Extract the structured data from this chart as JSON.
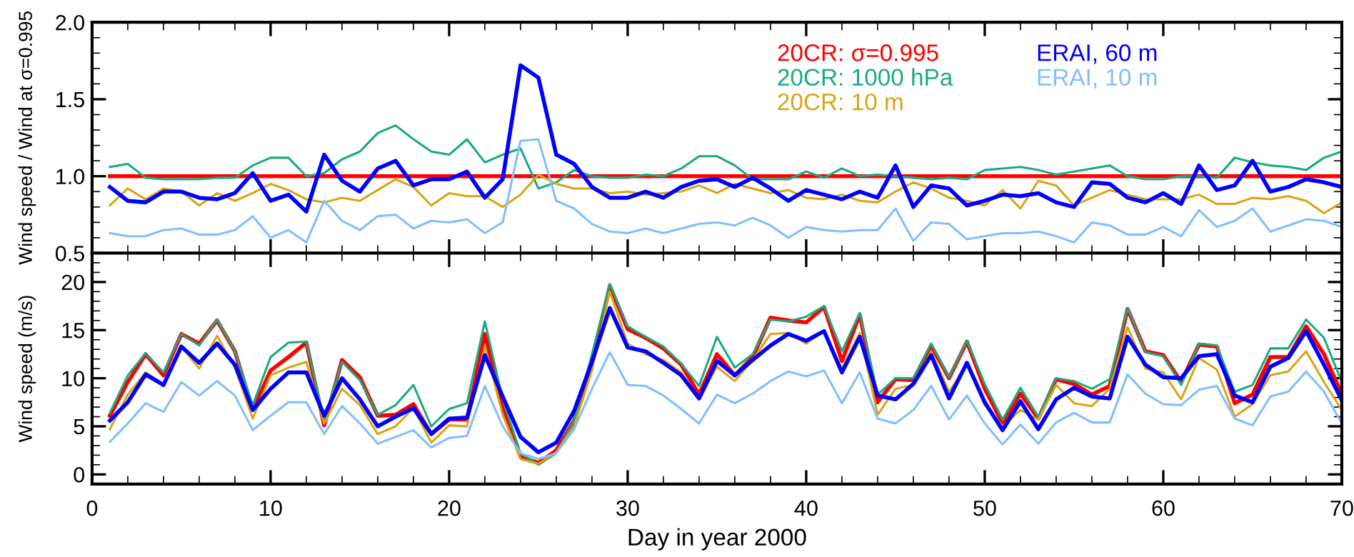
{
  "chart_data": [
    {
      "type": "line",
      "ylabel": "Wind speed / Wind at σ=0.995",
      "legend": "top right",
      "tick_labels": "y",
      "x": [
        1,
        2,
        3,
        4,
        5,
        6,
        7,
        8,
        9,
        10,
        11,
        12,
        13,
        14,
        15,
        16,
        17,
        18,
        19,
        20,
        21,
        22,
        23,
        24,
        25,
        26,
        27,
        28,
        29,
        30,
        31,
        32,
        33,
        34,
        35,
        36,
        37,
        38,
        39,
        40,
        41,
        42,
        43,
        44,
        45,
        46,
        47,
        48,
        49,
        50,
        51,
        52,
        53,
        54,
        55,
        56,
        57,
        58,
        59,
        60,
        61,
        62,
        63,
        64,
        65,
        66,
        67,
        68,
        69,
        70
      ],
      "xlim": [
        0,
        70
      ],
      "xticks": [
        0,
        10,
        20,
        30,
        40,
        50,
        60,
        70
      ],
      "ylim": [
        0.5,
        2.0
      ],
      "yticks": [
        0.5,
        {
          "value": 1,
          "label": "1.0"
        },
        1.5,
        {
          "value": 2,
          "label": "2.0"
        }
      ],
      "series": [
        {
          "name": "20CR: σ=0.995",
          "color": "#ff0000",
          "values": [
            1.0,
            1.0,
            1.0,
            1.0,
            1.0,
            1.0,
            1.0,
            1.0,
            1.0,
            1.0,
            1.0,
            1.0,
            1.0,
            1.0,
            1.0,
            1.0,
            1.0,
            1.0,
            1.0,
            1.0,
            1.0,
            1.0,
            1.0,
            1.0,
            1.0,
            1.0,
            1.0,
            1.0,
            1.0,
            1.0,
            1.0,
            1.0,
            1.0,
            1.0,
            1.0,
            1.0,
            1.0,
            1.0,
            1.0,
            1.0,
            1.0,
            1.0,
            1.0,
            1.0,
            1.0,
            1.0,
            1.0,
            1.0,
            1.0,
            1.0,
            1.0,
            1.0,
            1.0,
            1.0,
            1.0,
            1.0,
            1.0,
            1.0,
            1.0,
            1.0,
            1.0,
            1.0,
            1.0,
            1.0,
            1.0,
            1.0,
            1.0,
            1.0,
            1.0,
            1.0
          ]
        },
        {
          "name": "20CR: 1000 hPa",
          "color": "#1aaa80",
          "values": [
            1.06,
            1.08,
            0.99,
            0.98,
            0.98,
            0.98,
            0.99,
            0.99,
            1.07,
            1.12,
            1.12,
            1.0,
            1.02,
            1.11,
            1.16,
            1.28,
            1.33,
            1.24,
            1.16,
            1.14,
            1.24,
            1.09,
            1.14,
            1.18,
            0.92,
            0.96,
            1.04,
            1.0,
            0.99,
            0.99,
            1.01,
            1.0,
            1.05,
            1.13,
            1.13,
            1.07,
            0.98,
            0.98,
            0.98,
            1.03,
            0.99,
            1.05,
            1.0,
            1.01,
            1.0,
            0.99,
            0.98,
            0.99,
            0.98,
            1.04,
            1.05,
            1.06,
            1.04,
            1.01,
            1.03,
            1.05,
            1.07,
            1.0,
            0.98,
            0.98,
            1.0,
            1.0,
            0.99,
            1.12,
            1.09,
            1.07,
            1.06,
            1.04,
            1.12,
            1.16
          ]
        },
        {
          "name": "20CR: 10 m",
          "color": "#d9a514",
          "values": [
            0.81,
            0.92,
            0.85,
            0.92,
            0.9,
            0.81,
            0.89,
            0.84,
            0.89,
            0.95,
            0.91,
            0.85,
            0.83,
            0.86,
            0.84,
            0.91,
            0.98,
            0.93,
            0.81,
            0.89,
            0.87,
            0.87,
            0.8,
            0.88,
            1.01,
            0.95,
            0.92,
            0.92,
            0.89,
            0.9,
            0.88,
            0.89,
            0.9,
            0.94,
            0.89,
            0.95,
            0.92,
            0.89,
            0.91,
            0.86,
            0.85,
            0.88,
            0.84,
            0.83,
            0.9,
            0.96,
            0.92,
            0.86,
            0.84,
            0.81,
            0.91,
            0.79,
            0.97,
            0.94,
            0.81,
            0.86,
            0.91,
            0.88,
            0.85,
            0.85,
            0.85,
            0.88,
            0.82,
            0.82,
            0.86,
            0.85,
            0.87,
            0.84,
            0.76,
            0.83
          ]
        },
        {
          "name": "ERAI, 60 m",
          "color": "#0000ff",
          "values": [
            0.93,
            0.84,
            0.83,
            0.9,
            0.9,
            0.86,
            0.85,
            0.89,
            1.02,
            0.84,
            0.88,
            0.77,
            1.14,
            0.97,
            0.9,
            1.05,
            1.1,
            0.94,
            0.98,
            0.98,
            1.03,
            0.86,
            0.98,
            1.72,
            1.64,
            1.14,
            1.08,
            0.93,
            0.86,
            0.86,
            0.9,
            0.86,
            0.93,
            0.97,
            0.98,
            0.93,
            0.99,
            0.92,
            0.84,
            0.91,
            0.88,
            0.85,
            0.9,
            0.86,
            1.07,
            0.8,
            0.94,
            0.92,
            0.81,
            0.84,
            0.88,
            0.87,
            0.89,
            0.83,
            0.8,
            0.96,
            0.95,
            0.86,
            0.83,
            0.89,
            0.82,
            1.07,
            0.91,
            0.94,
            1.1,
            0.9,
            0.93,
            0.98,
            0.96,
            0.93
          ]
        },
        {
          "name": "ERAI, 10 m",
          "color": "#80bfff",
          "values": [
            0.63,
            0.61,
            0.61,
            0.65,
            0.66,
            0.62,
            0.62,
            0.65,
            0.74,
            0.6,
            0.65,
            0.57,
            0.84,
            0.71,
            0.65,
            0.74,
            0.75,
            0.66,
            0.71,
            0.7,
            0.72,
            0.63,
            0.7,
            1.23,
            1.24,
            0.84,
            0.79,
            0.69,
            0.64,
            0.63,
            0.66,
            0.63,
            0.66,
            0.69,
            0.7,
            0.68,
            0.73,
            0.68,
            0.6,
            0.67,
            0.65,
            0.64,
            0.65,
            0.65,
            0.79,
            0.58,
            0.7,
            0.69,
            0.59,
            0.61,
            0.63,
            0.63,
            0.64,
            0.61,
            0.57,
            0.7,
            0.68,
            0.62,
            0.62,
            0.67,
            0.61,
            0.78,
            0.67,
            0.71,
            0.79,
            0.64,
            0.68,
            0.72,
            0.71,
            0.67
          ]
        }
      ]
    },
    {
      "type": "line",
      "ylabel": "Wind speed (m/s)",
      "xlabel": "Day in year 2000",
      "x": [
        1,
        2,
        3,
        4,
        5,
        6,
        7,
        8,
        9,
        10,
        11,
        12,
        13,
        14,
        15,
        16,
        17,
        18,
        19,
        20,
        21,
        22,
        23,
        24,
        25,
        26,
        27,
        28,
        29,
        30,
        31,
        32,
        33,
        34,
        35,
        36,
        37,
        38,
        39,
        40,
        41,
        42,
        43,
        44,
        45,
        46,
        47,
        48,
        49,
        50,
        51,
        52,
        53,
        54,
        55,
        56,
        57,
        58,
        59,
        60,
        61,
        62,
        63,
        64,
        65,
        66,
        67,
        68,
        69,
        70
      ],
      "xlim": [
        0,
        70
      ],
      "xticks": [
        0,
        10,
        20,
        30,
        40,
        50,
        60,
        70
      ],
      "ylim": [
        -1,
        23
      ],
      "yticks": [
        0,
        5,
        10,
        15,
        20
      ],
      "series": [
        {
          "color": "#ff0000",
          "values": [
            6.1,
            9.6,
            12.5,
            10.3,
            14.6,
            13.6,
            16.0,
            12.8,
            6.7,
            10.8,
            12.2,
            13.7,
            5.1,
            11.9,
            10.1,
            6.1,
            6.2,
            7.3,
            4.2,
            5.7,
            5.7,
            14.6,
            6.9,
            1.8,
            1.2,
            2.5,
            5.6,
            11.7,
            19.6,
            15.1,
            14.2,
            13.1,
            11.4,
            8.3,
            12.5,
            10.3,
            12.2,
            16.3,
            16.0,
            15.8,
            17.4,
            11.8,
            16.6,
            7.5,
            9.9,
            9.8,
            13.4,
            10.0,
            13.8,
            8.9,
            5.3,
            8.4,
            5.8,
            9.9,
            9.4,
            8.3,
            9.2,
            17.2,
            12.8,
            12.4,
            9.6,
            13.5,
            13.3,
            7.4,
            8.3,
            12.2,
            12.2,
            15.4,
            12.5,
            8.3
          ]
        },
        {
          "color": "#1aaa80",
          "values": [
            6.4,
            10.3,
            12.6,
            10.6,
            14.6,
            13.4,
            16.1,
            12.8,
            7.2,
            12.2,
            13.7,
            13.8,
            5.6,
            11.7,
            9.8,
            6.2,
            7.2,
            9.3,
            5.0,
            6.8,
            7.4,
            15.9,
            7.8,
            2.2,
            1.0,
            2.2,
            5.6,
            12.5,
            19.8,
            15.4,
            14.3,
            13.3,
            11.5,
            9.2,
            14.3,
            11.1,
            12.5,
            16.1,
            15.9,
            16.4,
            17.5,
            12.8,
            16.8,
            8.3,
            10.0,
            10.0,
            13.6,
            10.1,
            13.9,
            9.4,
            5.7,
            9.0,
            6.0,
            10.0,
            9.7,
            8.9,
            9.9,
            17.3,
            12.7,
            12.3,
            9.3,
            13.6,
            13.4,
            8.6,
            9.3,
            13.1,
            13.1,
            16.1,
            14.2,
            9.6
          ]
        },
        {
          "color": "#d9a514",
          "values": [
            4.7,
            8.3,
            10.6,
            9.4,
            13.3,
            11.0,
            14.4,
            11.1,
            5.8,
            10.3,
            11.1,
            11.7,
            5.3,
            8.9,
            7.2,
            4.2,
            5.0,
            6.9,
            3.3,
            5.1,
            5.0,
            13.3,
            6.2,
            1.6,
            1.1,
            2.3,
            5.0,
            10.8,
            19.0,
            13.6,
            12.5,
            11.9,
            10.6,
            7.8,
            11.2,
            9.7,
            11.9,
            14.6,
            14.7,
            13.6,
            14.9,
            11.0,
            14.7,
            6.2,
            8.9,
            9.3,
            12.8,
            8.6,
            11.4,
            7.2,
            5.0,
            6.7,
            5.7,
            9.3,
            7.4,
            7.1,
            8.9,
            15.3,
            11.0,
            10.6,
            7.8,
            12.1,
            10.9,
            6.0,
            7.3,
            10.3,
            10.7,
            12.8,
            9.6,
            6.7
          ]
        },
        {
          "color": "#0000ff",
          "values": [
            5.6,
            7.5,
            10.4,
            9.3,
            13.3,
            11.6,
            13.6,
            11.4,
            6.7,
            8.9,
            10.6,
            10.6,
            6.1,
            10.0,
            7.8,
            5.0,
            6.0,
            6.9,
            4.2,
            5.8,
            5.9,
            12.4,
            8.1,
            3.9,
            2.3,
            3.3,
            6.6,
            11.7,
            17.3,
            13.2,
            12.8,
            11.6,
            10.3,
            7.9,
            11.8,
            10.3,
            11.9,
            13.4,
            14.6,
            13.9,
            14.9,
            10.6,
            14.3,
            8.2,
            7.8,
            9.4,
            12.4,
            7.9,
            11.6,
            7.5,
            4.6,
            7.6,
            4.7,
            7.8,
            9.0,
            8.1,
            7.9,
            14.3,
            11.4,
            10.1,
            10.0,
            12.3,
            12.5,
            8.2,
            7.5,
            11.2,
            12.1,
            14.9,
            11.4,
            7.7
          ]
        },
        {
          "color": "#80bfff",
          "values": [
            3.4,
            5.3,
            7.4,
            6.5,
            9.6,
            8.2,
            9.7,
            8.2,
            4.6,
            6.1,
            7.5,
            7.5,
            4.2,
            7.1,
            5.3,
            3.2,
            3.9,
            4.6,
            2.8,
            3.8,
            4.0,
            9.2,
            5.0,
            2.2,
            1.6,
            2.2,
            4.7,
            8.9,
            12.7,
            9.3,
            9.2,
            8.2,
            6.8,
            5.3,
            8.3,
            7.4,
            8.4,
            9.7,
            10.7,
            10.2,
            10.8,
            7.4,
            10.6,
            5.8,
            5.3,
            6.7,
            9.2,
            5.7,
            8.2,
            5.3,
            3.1,
            5.2,
            3.2,
            5.4,
            6.4,
            5.4,
            5.4,
            10.4,
            8.4,
            7.3,
            7.2,
            8.8,
            9.2,
            5.8,
            5.1,
            8.1,
            8.6,
            10.7,
            8.6,
            5.3
          ]
        }
      ]
    }
  ]
}
